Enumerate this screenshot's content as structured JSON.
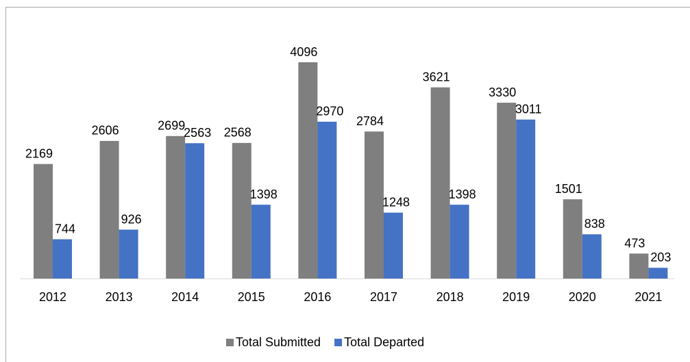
{
  "chart_data": {
    "type": "bar",
    "categories": [
      "2012",
      "2013",
      "2014",
      "2015",
      "2016",
      "2017",
      "2018",
      "2019",
      "2020",
      "2021"
    ],
    "series": [
      {
        "name": "Total Submitted",
        "color": "#7f7f7f",
        "values": [
          2169,
          2606,
          2699,
          2568,
          4096,
          2784,
          3621,
          3330,
          1501,
          473
        ]
      },
      {
        "name": "Total Departed",
        "color": "#4472c4",
        "values": [
          744,
          926,
          2563,
          1398,
          2970,
          1248,
          1398,
          3011,
          838,
          203
        ]
      }
    ],
    "legend": "bottom"
  }
}
